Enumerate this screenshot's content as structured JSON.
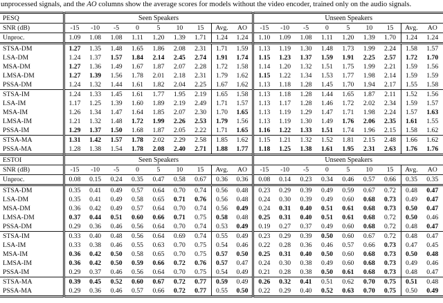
{
  "caption": {
    "pre": "unprocessed signals, and the ",
    "italic": "AO",
    "post": " columns show the average scores for models without the video encoder, trained only on the audio signals."
  },
  "groups": {
    "seen": "Seen Speakers",
    "unseen": "Unseen Speakers"
  },
  "columns": {
    "snr_label": "SNR (dB)",
    "snr_values": [
      "-15",
      "-10",
      "-5",
      "0",
      "5",
      "10",
      "15"
    ],
    "avg_label": "Avg.",
    "ao_label": "AO"
  },
  "bold_marker": "*",
  "sections": [
    {
      "metric": "PESQ",
      "row_groups": [
        {
          "divider": "single",
          "rows": [
            {
              "label": "Unproc.",
              "seen": [
                "1.09",
                "1.08",
                "1.08",
                "1.11",
                "1.20",
                "1.39",
                "1.71",
                "1.24",
                "1.24"
              ],
              "unseen": [
                "1.10",
                "1.09",
                "1.08",
                "1.11",
                "1.20",
                "1.39",
                "1.70",
                "1.24",
                "1.24"
              ]
            }
          ]
        },
        {
          "divider": "double",
          "rows": [
            {
              "label": "STSA-DM",
              "seen": [
                "*1.27",
                "1.35",
                "1.48",
                "1.65",
                "1.86",
                "2.08",
                "2.31",
                "1.71",
                "1.59"
              ],
              "unseen": [
                "1.13",
                "1.19",
                "1.30",
                "1.48",
                "1.73",
                "1.99",
                "2.24",
                "1.58",
                "1.57"
              ]
            },
            {
              "label": "LSA-DM",
              "seen": [
                "1.24",
                "1.37",
                "*1.57",
                "*1.84",
                "*2.14",
                "*2.45",
                "*2.74",
                "*1.91",
                "*1.74"
              ],
              "unseen": [
                "*1.15",
                "*1.23",
                "*1.37",
                "*1.59",
                "*1.91",
                "*2.25",
                "*2.57",
                "*1.72",
                "*1.70"
              ]
            },
            {
              "label": "MSA-DM",
              "seen": [
                "*1.27",
                "1.36",
                "1.49",
                "1.67",
                "1.87",
                "2.07",
                "2.28",
                "1.72",
                "1.58"
              ],
              "unseen": [
                "1.14",
                "1.20",
                "1.32",
                "1.51",
                "1.75",
                "1.99",
                "2.21",
                "1.59",
                "1.56"
              ]
            },
            {
              "label": "LMSA-DM",
              "seen": [
                "*1.27",
                "*1.39",
                "1.56",
                "1.78",
                "2.01",
                "2.18",
                "2.31",
                "1.79",
                "1.62"
              ],
              "unseen": [
                "*1.15",
                "1.22",
                "1.34",
                "1.53",
                "1.77",
                "1.98",
                "2.14",
                "1.59",
                "1.59"
              ]
            },
            {
              "label": "PSSA-DM",
              "seen": [
                "1.24",
                "1.32",
                "1.44",
                "1.61",
                "1.82",
                "2.04",
                "2.25",
                "1.67",
                "1.62"
              ],
              "unseen": [
                "1.13",
                "1.18",
                "1.28",
                "1.45",
                "1.70",
                "1.94",
                "2.17",
                "1.55",
                "1.58"
              ]
            }
          ]
        },
        {
          "divider": "single",
          "rows": [
            {
              "label": "STSA-IM",
              "seen": [
                "1.24",
                "1.33",
                "1.45",
                "1.61",
                "1.77",
                "1.95",
                "2.19",
                "1.65",
                "1.58"
              ],
              "unseen": [
                "1.13",
                "1.18",
                "1.28",
                "1.44",
                "1.65",
                "1.87",
                "2.11",
                "1.52",
                "1.56"
              ]
            },
            {
              "label": "LSA-IM",
              "seen": [
                "1.17",
                "1.25",
                "1.39",
                "1.60",
                "1.89",
                "2.19",
                "2.49",
                "1.71",
                "1.57"
              ],
              "unseen": [
                "1.13",
                "1.17",
                "1.28",
                "1.46",
                "1.72",
                "2.02",
                "2.34",
                "1.59",
                "1.57"
              ]
            },
            {
              "label": "MSA-IM",
              "seen": [
                "1.26",
                "1.34",
                "1.47",
                "1.64",
                "1.85",
                "2.07",
                "2.30",
                "1.70",
                "*1.65"
              ],
              "unseen": [
                "1.13",
                "1.19",
                "1.29",
                "1.47",
                "1.71",
                "1.98",
                "2.24",
                "1.57",
                "*1.63"
              ]
            },
            {
              "label": "LMSA-IM",
              "seen": [
                "1.21",
                "1.32",
                "1.48",
                "*1.72",
                "*1.99",
                "*2.26",
                "*2.53",
                "*1.79",
                "1.56"
              ],
              "unseen": [
                "1.13",
                "1.19",
                "1.30",
                "1.49",
                "*1.76",
                "*2.06",
                "*2.35",
                "*1.61",
                "1.55"
              ]
            },
            {
              "label": "PSSA-IM",
              "seen": [
                "*1.29",
                "*1.37",
                "*1.50",
                "1.68",
                "1.87",
                "2.05",
                "2.22",
                "1.71",
                "*1.65"
              ],
              "unseen": [
                "*1.16",
                "*1.22",
                "*1.33",
                "*1.51",
                "1.74",
                "1.96",
                "2.15",
                "1.58",
                "1.62"
              ]
            }
          ]
        },
        {
          "divider": "single",
          "rows": [
            {
              "label": "STSA-MA",
              "seen": [
                "*1.31",
                "*1.42",
                "*1.57",
                "*1.78",
                "2.02",
                "2.29",
                "2.58",
                "1.85",
                "1.62"
              ],
              "unseen": [
                "1.15",
                "1.21",
                "1.32",
                "1.52",
                "1.81",
                "2.15",
                "2.48",
                "1.66",
                "1.62"
              ]
            },
            {
              "label": "PSSA-MA",
              "seen": [
                "1.28",
                "1.38",
                "1.54",
                "*1.78",
                "*2.08",
                "*2.40",
                "*2.71",
                "*1.88",
                "*1.77"
              ],
              "unseen": [
                "*1.18",
                "*1.25",
                "*1.38",
                "*1.61",
                "*1.95",
                "*2.31",
                "*2.63",
                "*1.76",
                "*1.76"
              ]
            }
          ]
        }
      ]
    },
    {
      "metric": "ESTOI",
      "row_groups": [
        {
          "divider": "single",
          "rows": [
            {
              "label": "Unproc.",
              "seen": [
                "0.08",
                "0.15",
                "0.24",
                "0.35",
                "0.47",
                "0.58",
                "0.67",
                "0.36",
                "0.36"
              ],
              "unseen": [
                "0.08",
                "0.14",
                "0.23",
                "0.34",
                "0.46",
                "0.57",
                "0.66",
                "0.35",
                "0.35"
              ]
            }
          ]
        },
        {
          "divider": "double",
          "rows": [
            {
              "label": "STSA-DM",
              "seen": [
                "0.35",
                "0.41",
                "0.49",
                "0.57",
                "0.64",
                "0.70",
                "0.74",
                "0.56",
                "0.48"
              ],
              "unseen": [
                "0.23",
                "0.29",
                "0.39",
                "0.49",
                "0.59",
                "0.67",
                "0.72",
                "0.48",
                "*0.47"
              ]
            },
            {
              "label": "LSA-DM",
              "seen": [
                "0.35",
                "0.41",
                "0.49",
                "0.58",
                "0.65",
                "*0.71",
                "*0.76",
                "0.56",
                "0.48"
              ],
              "unseen": [
                "0.24",
                "0.30",
                "0.39",
                "0.49",
                "0.60",
                "*0.68",
                "*0.73",
                "0.49",
                "*0.47"
              ]
            },
            {
              "label": "MSA-DM",
              "seen": [
                "0.36",
                "0.42",
                "0.49",
                "0.57",
                "0.64",
                "0.70",
                "0.74",
                "0.56",
                "*0.49"
              ],
              "unseen": [
                "0.24",
                "*0.31",
                "*0.40",
                "*0.51",
                "*0.61",
                "*0.68",
                "*0.73",
                "*0.50",
                "*0.47"
              ]
            },
            {
              "label": "LMSA-DM",
              "seen": [
                "*0.37",
                "*0.44",
                "*0.51",
                "*0.60",
                "*0.66",
                "*0.71",
                "0.75",
                "*0.58",
                "0.48"
              ],
              "unseen": [
                "*0.25",
                "*0.31",
                "*0.40",
                "*0.51",
                "*0.61",
                "*0.68",
                "0.72",
                "*0.50",
                "0.46"
              ]
            },
            {
              "label": "PSSA-DM",
              "seen": [
                "0.29",
                "0.36",
                "0.46",
                "0.56",
                "0.64",
                "0.70",
                "0.74",
                "0.53",
                "*0.49"
              ],
              "unseen": [
                "0.19",
                "0.27",
                "0.37",
                "0.49",
                "0.60",
                "*0.68",
                "0.72",
                "0.48",
                "*0.47"
              ]
            }
          ]
        },
        {
          "divider": "single",
          "rows": [
            {
              "label": "STSA-IM",
              "seen": [
                "0.33",
                "0.40",
                "0.48",
                "0.56",
                "0.64",
                "0.69",
                "0.74",
                "0.55",
                "0.49"
              ],
              "unseen": [
                "0.23",
                "0.29",
                "0.39",
                "*0.50",
                "0.60",
                "0.67",
                "0.72",
                "0.48",
                "0.47"
              ]
            },
            {
              "label": "LSA-IM",
              "seen": [
                "0.33",
                "0.38",
                "0.46",
                "0.55",
                "0.63",
                "0.70",
                "0.75",
                "0.54",
                "0.46"
              ],
              "unseen": [
                "0.22",
                "0.28",
                "0.36",
                "0.46",
                "0.57",
                "0.66",
                "*0.73",
                "0.47",
                "0.45"
              ]
            },
            {
              "label": "MSA-IM",
              "seen": [
                "*0.36",
                "*0.42",
                "*0.50",
                "0.58",
                "0.65",
                "0.70",
                "0.75",
                "*0.57",
                "*0.50"
              ],
              "unseen": [
                "*0.25",
                "*0.31",
                "*0.40",
                "*0.50",
                "0.60",
                "*0.68",
                "*0.73",
                "*0.50",
                "*0.48"
              ]
            },
            {
              "label": "LMSA-IM",
              "seen": [
                "*0.36",
                "*0.42",
                "*0.50",
                "*0.59",
                "*0.66",
                "*0.72",
                "*0.76",
                "*0.57",
                "0.47"
              ],
              "unseen": [
                "0.24",
                "0.30",
                "0.38",
                "0.49",
                "0.60",
                "*0.68",
                "*0.73",
                "0.49",
                "0.46"
              ]
            },
            {
              "label": "PSSA-IM",
              "seen": [
                "0.29",
                "0.37",
                "0.46",
                "0.56",
                "0.64",
                "0.70",
                "0.75",
                "0.54",
                "0.49"
              ],
              "unseen": [
                "0.21",
                "0.28",
                "0.38",
                "*0.50",
                "*0.61",
                "*0.68",
                "*0.73",
                "0.48",
                "0.47"
              ]
            }
          ]
        },
        {
          "divider": "single",
          "rows": [
            {
              "label": "STSA-MA",
              "seen": [
                "*0.39",
                "*0.45",
                "*0.52",
                "*0.60",
                "*0.67",
                "*0.72",
                "*0.77",
                "*0.59",
                "0.49"
              ],
              "unseen": [
                "*0.26",
                "*0.32",
                "*0.41",
                "0.51",
                "0.62",
                "*0.70",
                "*0.75",
                "*0.51",
                "0.48"
              ]
            },
            {
              "label": "PSSA-MA",
              "seen": [
                "0.29",
                "0.36",
                "0.46",
                "0.57",
                "0.66",
                "*0.72",
                "*0.77",
                "0.55",
                "*0.50"
              ],
              "unseen": [
                "0.22",
                "0.29",
                "0.40",
                "*0.52",
                "*0.63",
                "*0.70",
                "*0.75",
                "0.50",
                "*0.49"
              ]
            }
          ]
        }
      ]
    }
  ]
}
